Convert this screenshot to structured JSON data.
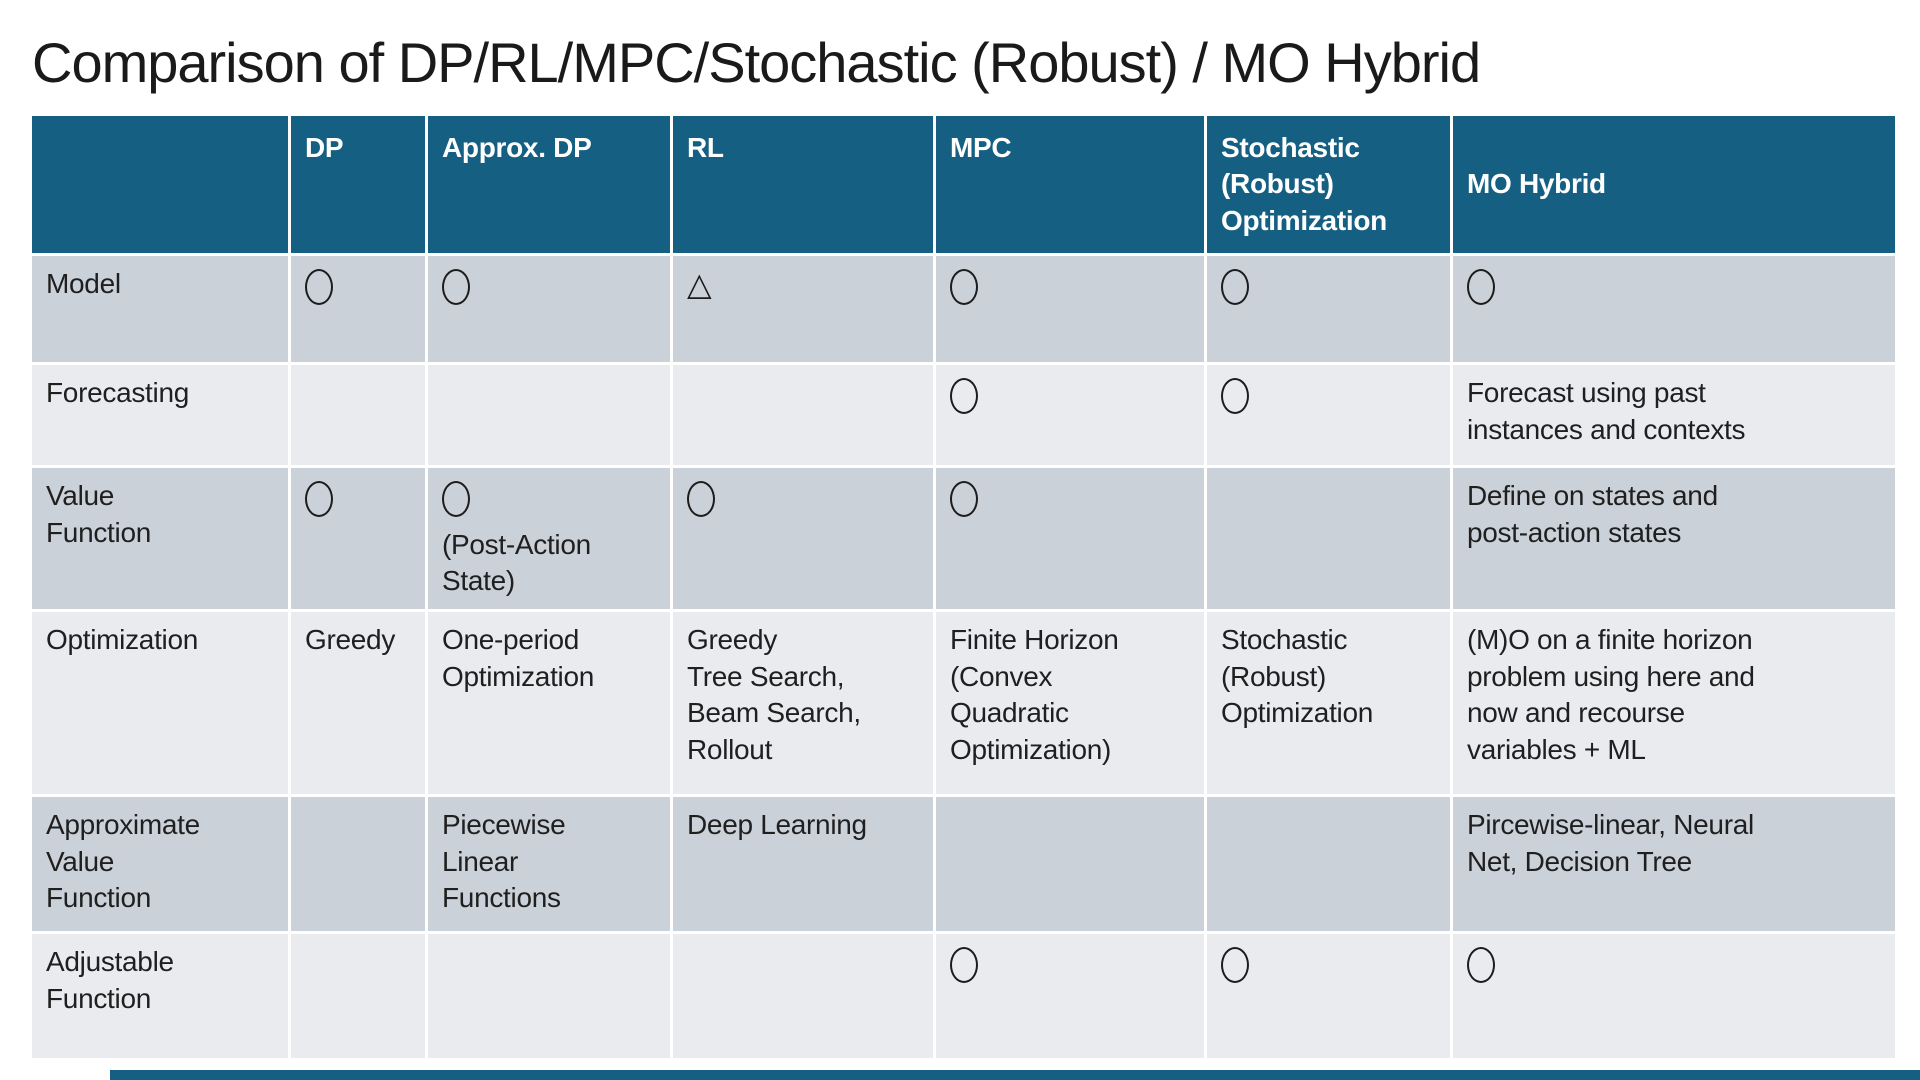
{
  "slide": {
    "title": "Comparison of DP/RL/MPC/Stochastic (Robust) / MO Hybrid"
  },
  "colors": {
    "header_bg": "#156082",
    "band_dark": "#CBD1D9",
    "band_light": "#E9EBEF",
    "accent_bar": "#156082"
  },
  "table": {
    "markers": {
      "circle": "○",
      "triangle": "△"
    },
    "columns": [
      "",
      "DP",
      "Approx. DP",
      "RL",
      "MPC",
      "Stochastic\n(Robust)\nOptimization",
      "MO Hybrid"
    ],
    "rows": [
      {
        "label": "Model",
        "cells": [
          {
            "marker": "circle"
          },
          {
            "marker": "circle"
          },
          {
            "marker": "triangle"
          },
          {
            "marker": "circle"
          },
          {
            "marker": "circle"
          },
          {
            "marker": "circle"
          }
        ]
      },
      {
        "label": "Forecasting",
        "cells": [
          {},
          {},
          {},
          {
            "marker": "circle"
          },
          {
            "marker": "circle"
          },
          {
            "text": "Forecast using past\ninstances and contexts"
          }
        ]
      },
      {
        "label": "Value\nFunction",
        "cells": [
          {
            "marker": "circle"
          },
          {
            "marker": "circle",
            "text": "(Post-Action\nState)"
          },
          {
            "marker": "circle"
          },
          {
            "marker": "circle"
          },
          {},
          {
            "text": "Define on states and\npost-action states"
          }
        ]
      },
      {
        "label": "Optimization",
        "cells": [
          {
            "text": "Greedy"
          },
          {
            "text": "One-period\nOptimization"
          },
          {
            "text": "Greedy\nTree Search,\nBeam Search,\nRollout"
          },
          {
            "text": "Finite Horizon\n(Convex\nQuadratic\nOptimization)"
          },
          {
            "text": "Stochastic\n(Robust)\nOptimization"
          },
          {
            "text": "(M)O  on a finite horizon\nproblem using here and\nnow and recourse\nvariables + ML"
          }
        ]
      },
      {
        "label": "Approximate\nValue\nFunction",
        "cells": [
          {},
          {
            "text": "Piecewise\nLinear\nFunctions"
          },
          {
            "text": "Deep Learning"
          },
          {},
          {},
          {
            "text": "Pircewise-linear, Neural\nNet, Decision Tree"
          }
        ]
      },
      {
        "label": "Adjustable\nFunction",
        "cells": [
          {},
          {},
          {},
          {
            "marker": "circle"
          },
          {
            "marker": "circle"
          },
          {
            "marker": "circle"
          }
        ]
      }
    ]
  }
}
